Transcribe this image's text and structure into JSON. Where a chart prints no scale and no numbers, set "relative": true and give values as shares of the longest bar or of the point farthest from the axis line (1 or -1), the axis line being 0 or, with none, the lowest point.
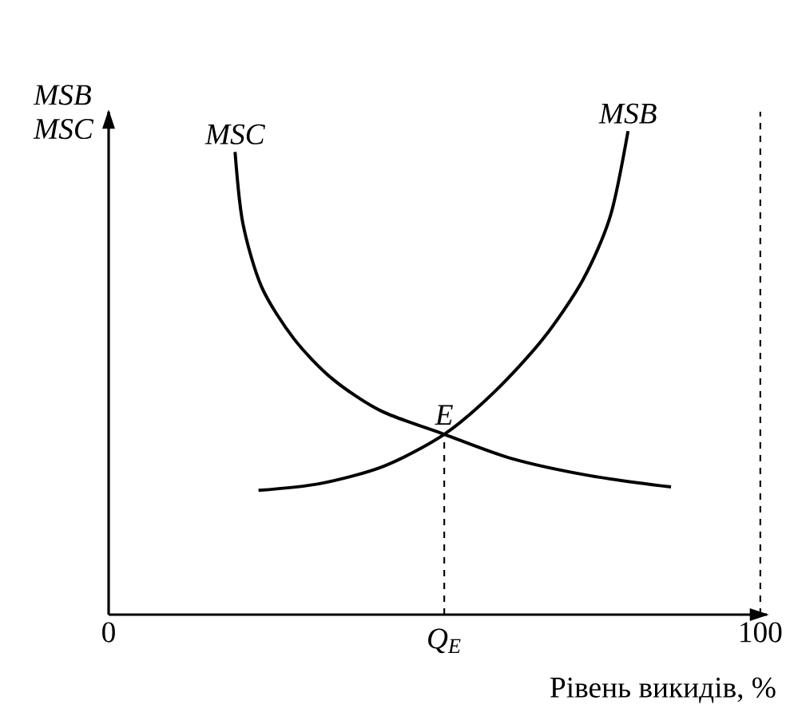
{
  "chart_data": {
    "type": "line",
    "relative": true,
    "xlabel": "Рівень викидів, %",
    "ylabel": "MSB MSC",
    "xlim": [
      0,
      101
    ],
    "xticks": [
      0,
      100
    ],
    "tick_labels": "x",
    "legend": false,
    "grid": false,
    "line_style": "solid",
    "marker": "none",
    "series": [
      {
        "name": "MSC",
        "color": "#000000",
        "x": [
          19.4,
          20.6,
          23.5,
          28.4,
          34.3,
          41.7,
          51.5,
          61.8,
          74.0,
          86.3
        ],
        "values": [
          0.957,
          0.809,
          0.677,
          0.571,
          0.488,
          0.422,
          0.373,
          0.323,
          0.287,
          0.264
        ]
      },
      {
        "name": "MSB",
        "color": "#000000",
        "x": [
          23.0,
          32.4,
          42.2,
          51.5,
          59.3,
          66.7,
          72.8,
          77.0,
          79.7
        ],
        "values": [
          0.257,
          0.271,
          0.307,
          0.373,
          0.462,
          0.571,
          0.693,
          0.825,
          1.0
        ]
      }
    ],
    "ref_lines": [
      {
        "axis": "x",
        "value": 51.5,
        "label": "Q$_{E}$",
        "line_style": "dashed"
      },
      {
        "axis": "x",
        "value": 100,
        "line_style": "dashed"
      }
    ],
    "annotations": [
      {
        "text": "E",
        "x": 51.5,
        "y": 0.373
      }
    ]
  }
}
